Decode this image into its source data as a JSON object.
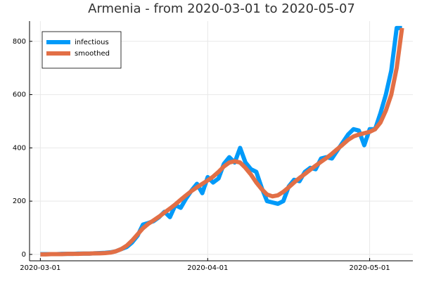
{
  "chart_data": {
    "type": "line",
    "title": "Armenia - from 2020-03-01 to 2020-05-07",
    "x": [
      "2020-03-01",
      "2020-03-02",
      "2020-03-03",
      "2020-03-04",
      "2020-03-05",
      "2020-03-06",
      "2020-03-07",
      "2020-03-08",
      "2020-03-09",
      "2020-03-10",
      "2020-03-11",
      "2020-03-12",
      "2020-03-13",
      "2020-03-14",
      "2020-03-15",
      "2020-03-16",
      "2020-03-17",
      "2020-03-18",
      "2020-03-19",
      "2020-03-20",
      "2020-03-21",
      "2020-03-22",
      "2020-03-23",
      "2020-03-24",
      "2020-03-25",
      "2020-03-26",
      "2020-03-27",
      "2020-03-28",
      "2020-03-29",
      "2020-03-30",
      "2020-03-31",
      "2020-04-01",
      "2020-04-02",
      "2020-04-03",
      "2020-04-04",
      "2020-04-05",
      "2020-04-06",
      "2020-04-07",
      "2020-04-08",
      "2020-04-09",
      "2020-04-10",
      "2020-04-11",
      "2020-04-12",
      "2020-04-13",
      "2020-04-14",
      "2020-04-15",
      "2020-04-16",
      "2020-04-17",
      "2020-04-18",
      "2020-04-19",
      "2020-04-20",
      "2020-04-21",
      "2020-04-22",
      "2020-04-23",
      "2020-04-24",
      "2020-04-25",
      "2020-04-26",
      "2020-04-27",
      "2020-04-28",
      "2020-04-29",
      "2020-04-30",
      "2020-05-01",
      "2020-05-02",
      "2020-05-03",
      "2020-05-04",
      "2020-05-05",
      "2020-05-06",
      "2020-05-07"
    ],
    "series": [
      {
        "name": "infectious",
        "color": "#009af9",
        "values": [
          1,
          1,
          1,
          1,
          2,
          2,
          2,
          3,
          3,
          3,
          4,
          5,
          6,
          8,
          12,
          20,
          28,
          45,
          70,
          112,
          118,
          125,
          140,
          160,
          140,
          185,
          175,
          210,
          240,
          265,
          230,
          290,
          270,
          285,
          340,
          365,
          345,
          400,
          345,
          320,
          310,
          250,
          200,
          195,
          190,
          200,
          255,
          280,
          275,
          310,
          325,
          320,
          360,
          365,
          360,
          390,
          420,
          450,
          470,
          465,
          410,
          470,
          470,
          530,
          600,
          690,
          850,
          850
        ]
      },
      {
        "name": "smoothed",
        "color": "#e26f46",
        "values": [
          0,
          0,
          1,
          1,
          1,
          2,
          2,
          2,
          3,
          3,
          4,
          4,
          5,
          7,
          12,
          20,
          33,
          52,
          75,
          98,
          115,
          128,
          142,
          157,
          172,
          188,
          205,
          222,
          238,
          252,
          265,
          278,
          292,
          310,
          330,
          345,
          350,
          345,
          325,
          300,
          270,
          245,
          225,
          218,
          222,
          235,
          252,
          270,
          287,
          302,
          318,
          333,
          348,
          362,
          378,
          395,
          412,
          430,
          443,
          450,
          455,
          460,
          470,
          495,
          540,
          600,
          700,
          850
        ]
      }
    ],
    "xlim": [
      "2020-02-28",
      "2020-05-09"
    ],
    "xticks": [
      "2020-03-01",
      "2020-04-01",
      "2020-05-01"
    ],
    "ylim": [
      -24,
      876
    ],
    "yticks": [
      0,
      200,
      400,
      600,
      800
    ],
    "grid": true,
    "legend": "topleft"
  }
}
